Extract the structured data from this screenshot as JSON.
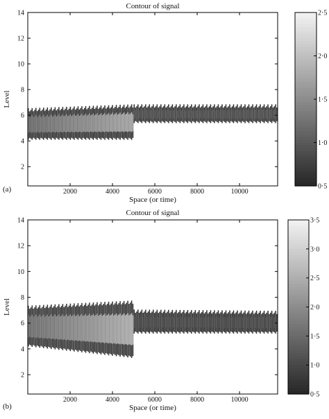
{
  "chart_data": [
    {
      "type": "heatmap",
      "panel_label": "(a)",
      "title": "Contour of signal",
      "xlabel": "Space (or time)",
      "ylabel": "Level",
      "xlim": [
        0,
        11800
      ],
      "ylim": [
        0.5,
        14
      ],
      "xticks": [
        "2000",
        "4000",
        "6000",
        "8000",
        "10000"
      ],
      "yticks": [
        "2",
        "4",
        "6",
        "8",
        "10",
        "12",
        "14"
      ],
      "colorbar_range": [
        0.5,
        2.5
      ],
      "colorbar_ticks": [
        "0·5",
        "1·0",
        "1·5",
        "2·0",
        "2·5"
      ],
      "bands": [
        {
          "x_start": 0,
          "x_end": 5000,
          "y_low_start": 4.3,
          "y_high_start": 6.2,
          "y_low_end": 4.3,
          "y_high_end": 6.5,
          "core_value_start": 1.2,
          "core_value_end": 1.8,
          "edge_value": 0.6
        },
        {
          "x_start": 5000,
          "x_end": 11800,
          "y_low_start": 5.6,
          "y_high_start": 6.5,
          "y_low_end": 5.6,
          "y_high_end": 6.5,
          "core_value_start": 0.9,
          "core_value_end": 0.9,
          "edge_value": 0.6
        }
      ]
    },
    {
      "type": "heatmap",
      "panel_label": "(b)",
      "title": "Contour of signal",
      "xlabel": "Space (or time)",
      "ylabel": "Level",
      "xlim": [
        0,
        11800
      ],
      "ylim": [
        0.5,
        14
      ],
      "xticks": [
        "2000",
        "4000",
        "6000",
        "8000",
        "10000"
      ],
      "yticks": [
        "2",
        "4",
        "6",
        "8",
        "10",
        "12",
        "14"
      ],
      "colorbar_range": [
        0.5,
        3.5
      ],
      "colorbar_ticks": [
        "0·5",
        "1·0",
        "1·5",
        "2·0",
        "2·5",
        "3·0",
        "3·5"
      ],
      "bands": [
        {
          "x_start": 0,
          "x_end": 5000,
          "y_low_start": 4.4,
          "y_high_start": 7.0,
          "y_low_end": 3.5,
          "y_high_end": 7.4,
          "core_value_start": 1.6,
          "core_value_end": 2.6,
          "edge_value": 0.7
        },
        {
          "x_start": 5000,
          "x_end": 11800,
          "y_low_start": 5.4,
          "y_high_start": 6.7,
          "y_low_end": 5.4,
          "y_high_end": 6.6,
          "core_value_start": 1.0,
          "core_value_end": 1.0,
          "edge_value": 0.6
        }
      ]
    }
  ]
}
